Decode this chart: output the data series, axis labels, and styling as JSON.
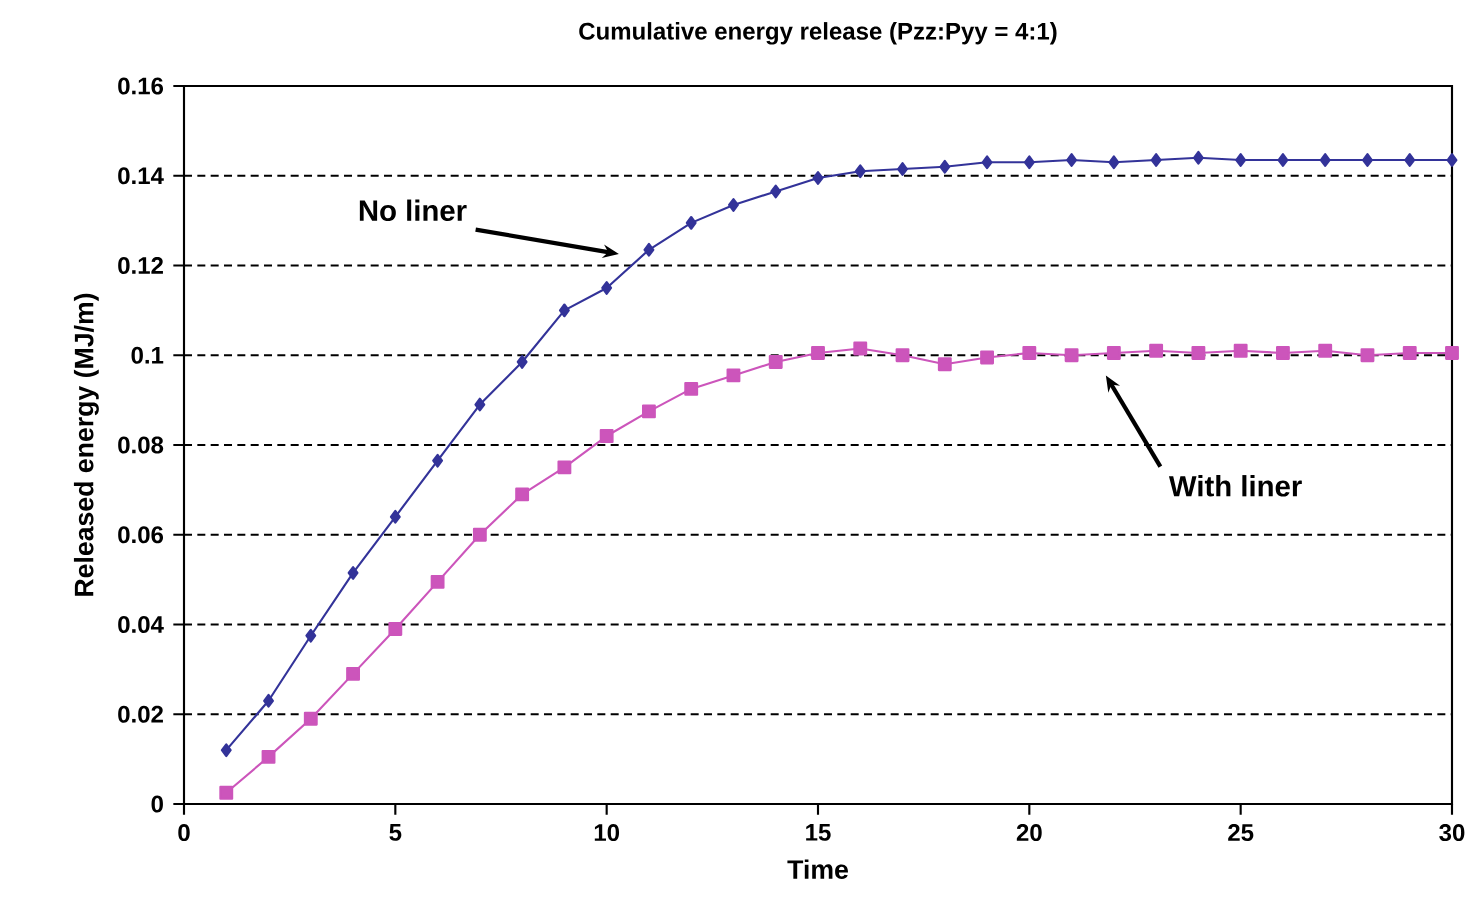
{
  "chart_data": {
    "type": "line",
    "title": "Cumulative energy release (Pzz:Pyy = 4:1)",
    "xlabel": "Time",
    "ylabel": "Released energy (MJ/m)",
    "xlim": [
      0,
      30
    ],
    "xticks": [
      0,
      5,
      10,
      15,
      20,
      25,
      30
    ],
    "ylim": [
      0,
      0.16
    ],
    "yticks": [
      0,
      0.02,
      0.04,
      0.06,
      0.08,
      0.1,
      0.12,
      0.14,
      0.16
    ],
    "grid": "y",
    "line_style": "solid",
    "annotations": [
      "No liner",
      "With liner"
    ],
    "series": [
      {
        "color": "#333399",
        "marker": "diamond",
        "x": [
          1,
          2,
          3,
          4,
          5,
          6,
          7,
          8,
          9,
          10,
          11,
          12,
          13,
          14,
          15,
          16,
          17,
          18,
          19,
          20,
          21,
          22,
          23,
          24,
          25,
          26,
          27,
          28,
          29,
          30
        ],
        "values": [
          0.012,
          0.023,
          0.0375,
          0.0515,
          0.064,
          0.0765,
          0.089,
          0.0985,
          0.11,
          0.115,
          0.1235,
          0.1295,
          0.1335,
          0.1365,
          0.1395,
          0.141,
          0.1415,
          0.142,
          0.143,
          0.143,
          0.1435,
          0.143,
          0.1435,
          0.144,
          0.1435,
          0.1435,
          0.1435,
          0.1435,
          0.1435,
          0.1435
        ]
      },
      {
        "color": "#cc55bb",
        "marker": "square",
        "x": [
          1,
          2,
          3,
          4,
          5,
          6,
          7,
          8,
          9,
          10,
          11,
          12,
          13,
          14,
          15,
          16,
          17,
          18,
          19,
          20,
          21,
          22,
          23,
          24,
          25,
          26,
          27,
          28,
          29,
          30
        ],
        "values": [
          0.0025,
          0.0105,
          0.019,
          0.029,
          0.039,
          0.0495,
          0.06,
          0.069,
          0.075,
          0.082,
          0.0875,
          0.0925,
          0.0955,
          0.0985,
          0.1005,
          0.1015,
          0.1,
          0.098,
          0.0995,
          0.1005,
          0.1,
          0.1005,
          0.101,
          0.1005,
          0.101,
          0.1005,
          0.101,
          0.1,
          0.1005,
          0.1005
        ]
      }
    ]
  }
}
